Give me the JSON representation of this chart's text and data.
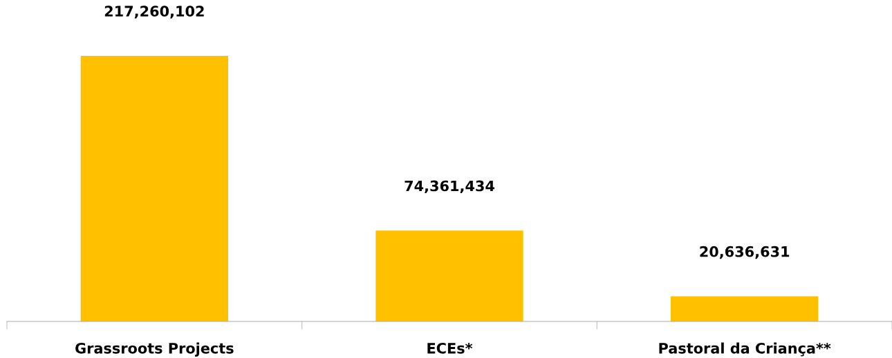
{
  "chart_data": {
    "type": "bar",
    "categories": [
      "Grassroots Projects",
      "ECEs*",
      "Pastoral da Criança**"
    ],
    "values": [
      217260102,
      74361434,
      20636631
    ],
    "value_labels": [
      "217,260,102",
      "74,361,434",
      "20,636,631"
    ],
    "color": "#ffc000",
    "grid": false,
    "legend": false
  }
}
